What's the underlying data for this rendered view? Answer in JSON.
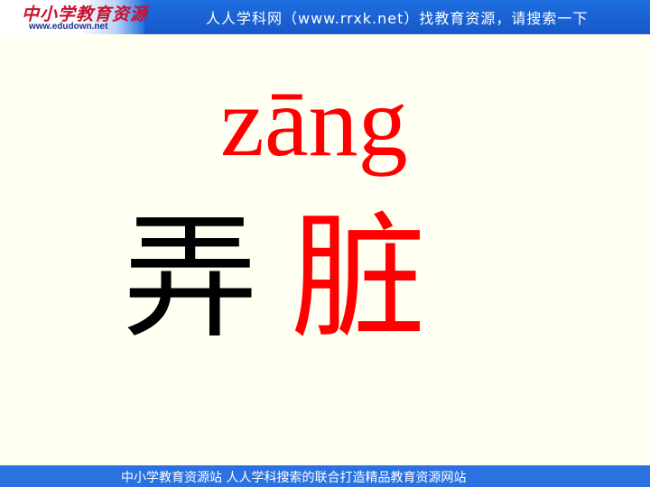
{
  "header": {
    "logo_text": "中小学教育资源",
    "logo_url": "www.edudown.net",
    "slogan": "人人学科网（www.rrxk.net）找教育资源，请搜索一下"
  },
  "slide": {
    "pinyin": "zāng",
    "word_char_1": "弄",
    "word_char_2": "脏"
  },
  "footer": {
    "text": "中小学教育资源站 人人学科搜索的联合打造精品教育资源网站"
  },
  "colors": {
    "header_blue": "#1E6FE0",
    "footer_blue": "#2A72E0",
    "highlight_red": "#FF0000",
    "background": "#FFFFF2"
  }
}
